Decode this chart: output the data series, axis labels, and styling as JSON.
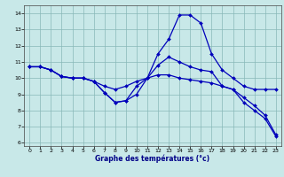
{
  "xlabel": "Graphe des températures (°c)",
  "background_color": "#c8e8e8",
  "line_color": "#0000bb",
  "xlim": [
    -0.5,
    23.5
  ],
  "ylim": [
    5.8,
    14.5
  ],
  "yticks": [
    6,
    7,
    8,
    9,
    10,
    11,
    12,
    13,
    14
  ],
  "xticks": [
    0,
    1,
    2,
    3,
    4,
    5,
    6,
    7,
    8,
    9,
    10,
    11,
    12,
    13,
    14,
    15,
    16,
    17,
    18,
    19,
    20,
    21,
    22,
    23
  ],
  "curve1_x": [
    0,
    1,
    2,
    3,
    4,
    5,
    6,
    7,
    8,
    9,
    10,
    11,
    12,
    13,
    14,
    15,
    16,
    17,
    18,
    19,
    20,
    21,
    22,
    23
  ],
  "curve1_y": [
    10.7,
    10.7,
    10.5,
    10.1,
    10.0,
    10.0,
    9.8,
    9.1,
    8.5,
    8.6,
    9.0,
    10.0,
    11.5,
    12.4,
    13.9,
    13.9,
    13.4,
    11.5,
    10.5,
    10.0,
    9.5,
    9.3,
    9.3,
    9.3
  ],
  "curve2_x": [
    0,
    1,
    2,
    3,
    4,
    5,
    6,
    7,
    8,
    9,
    10,
    11,
    12,
    13,
    14,
    15,
    16,
    17,
    18,
    19,
    20,
    21,
    22,
    23
  ],
  "curve2_y": [
    10.7,
    10.7,
    10.5,
    10.1,
    10.0,
    10.0,
    9.8,
    9.5,
    9.3,
    9.5,
    9.8,
    10.0,
    10.2,
    10.2,
    10.0,
    9.9,
    9.8,
    9.7,
    9.5,
    9.3,
    8.8,
    8.3,
    7.7,
    6.5
  ],
  "curve3_x": [
    0,
    1,
    2,
    3,
    4,
    5,
    6,
    7,
    8,
    9,
    10,
    11,
    12,
    13,
    14,
    15,
    16,
    17,
    18,
    19,
    20,
    21,
    22,
    23
  ],
  "curve3_y": [
    10.7,
    10.7,
    10.5,
    10.1,
    10.0,
    10.0,
    9.8,
    9.1,
    8.5,
    8.6,
    9.5,
    10.0,
    10.8,
    11.3,
    11.0,
    10.7,
    10.5,
    10.4,
    9.5,
    9.3,
    8.5,
    8.0,
    7.5,
    6.4
  ]
}
